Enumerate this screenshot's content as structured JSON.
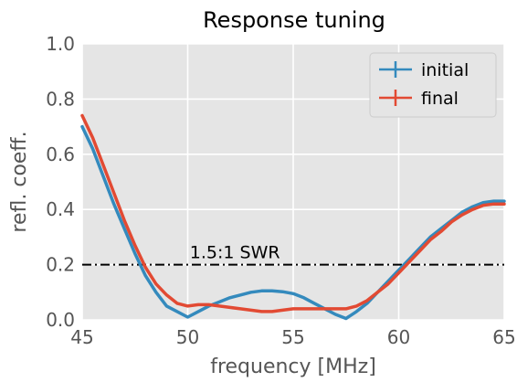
{
  "chart_data": {
    "type": "line",
    "title": "Response tuning",
    "xlabel": "frequency [MHz]",
    "ylabel": "refl. coeff.",
    "xlim": [
      45,
      65
    ],
    "ylim": [
      0.0,
      1.0
    ],
    "x_ticks": [
      "45",
      "50",
      "55",
      "60",
      "65"
    ],
    "y_ticks": [
      "0.0",
      "0.2",
      "0.4",
      "0.6",
      "0.8",
      "1.0"
    ],
    "grid": true,
    "legend_position": "top-right",
    "style": {
      "background": "#E5E5E5",
      "grid_color": "#FFFFFF",
      "text_color": "#555555"
    },
    "series": [
      {
        "name": "initial",
        "color": "#348ABD",
        "x": [
          45,
          45.5,
          46,
          46.5,
          47,
          47.5,
          48,
          48.5,
          49,
          49.5,
          50,
          50.5,
          51,
          51.5,
          52,
          52.5,
          53,
          53.5,
          54,
          54.5,
          55,
          55.5,
          56,
          56.5,
          57,
          57.5,
          58,
          58.5,
          59,
          59.5,
          60,
          60.5,
          61,
          61.5,
          62,
          62.5,
          63,
          63.5,
          64,
          64.5,
          65
        ],
        "values": [
          0.7,
          0.62,
          0.52,
          0.42,
          0.33,
          0.24,
          0.16,
          0.1,
          0.05,
          0.03,
          0.01,
          0.03,
          0.05,
          0.065,
          0.08,
          0.09,
          0.1,
          0.105,
          0.105,
          0.102,
          0.095,
          0.08,
          0.06,
          0.04,
          0.02,
          0.005,
          0.03,
          0.06,
          0.1,
          0.14,
          0.18,
          0.22,
          0.26,
          0.3,
          0.33,
          0.36,
          0.39,
          0.41,
          0.425,
          0.43,
          0.43
        ]
      },
      {
        "name": "final",
        "color": "#E24A33",
        "x": [
          45,
          45.5,
          46,
          46.5,
          47,
          47.5,
          48,
          48.5,
          49,
          49.5,
          50,
          50.5,
          51,
          51.5,
          52,
          52.5,
          53,
          53.5,
          54,
          54.5,
          55,
          55.5,
          56,
          56.5,
          57,
          57.5,
          58,
          58.5,
          59,
          59.5,
          60,
          60.5,
          61,
          61.5,
          62,
          62.5,
          63,
          63.5,
          64,
          64.5,
          65
        ],
        "values": [
          0.74,
          0.66,
          0.56,
          0.46,
          0.36,
          0.27,
          0.19,
          0.13,
          0.09,
          0.06,
          0.05,
          0.055,
          0.055,
          0.05,
          0.045,
          0.04,
          0.035,
          0.03,
          0.03,
          0.035,
          0.04,
          0.04,
          0.04,
          0.04,
          0.04,
          0.04,
          0.05,
          0.07,
          0.1,
          0.13,
          0.17,
          0.21,
          0.25,
          0.29,
          0.32,
          0.355,
          0.38,
          0.4,
          0.415,
          0.42,
          0.42
        ]
      }
    ],
    "reference_line": {
      "y": 0.2,
      "label": "1.5:1 SWR",
      "color": "#000000",
      "style": "dash-dot"
    }
  }
}
